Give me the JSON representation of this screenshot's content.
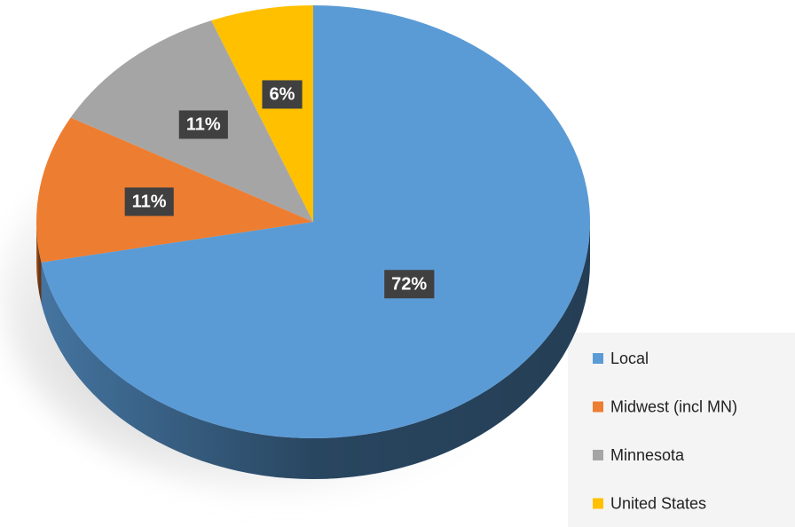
{
  "chart_data": {
    "type": "pie",
    "categories": [
      "Local",
      "Midwest (incl MN)",
      "Minnesota",
      "United States"
    ],
    "values": [
      72,
      11,
      11,
      6
    ],
    "value_labels": [
      "72%",
      "11%",
      "11%",
      "6%"
    ],
    "colors": [
      "#5b9bd5",
      "#ed7d31",
      "#a5a5a5",
      "#ffc000"
    ],
    "legend": "bottom-right"
  }
}
